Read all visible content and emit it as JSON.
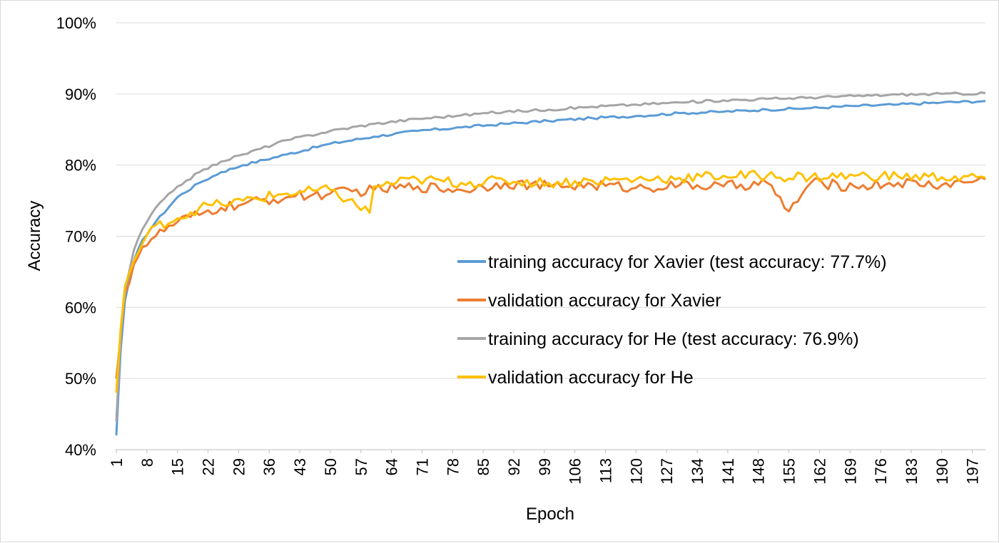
{
  "chart_data": {
    "type": "line",
    "title": "",
    "xlabel": "Epoch",
    "ylabel": "Accuracy",
    "ylim": [
      0.4,
      1.0
    ],
    "yticks": [
      "40%",
      "50%",
      "60%",
      "70%",
      "80%",
      "90%",
      "100%"
    ],
    "xlim": [
      1,
      200
    ],
    "xtick_labels": [
      "1",
      "8",
      "15",
      "22",
      "29",
      "36",
      "43",
      "50",
      "57",
      "64",
      "71",
      "78",
      "85",
      "92",
      "99",
      "106",
      "113",
      "120",
      "127",
      "134",
      "141",
      "148",
      "155",
      "162",
      "169",
      "176",
      "183",
      "190",
      "197"
    ],
    "grid": "horizontal",
    "legend_position": "center-right",
    "series": [
      {
        "name": "training accuracy for Xavier (test accuracy: 77.7%)",
        "color": "#5B9BD5",
        "x": [
          1,
          2,
          3,
          5,
          7,
          10,
          15,
          20,
          25,
          30,
          40,
          50,
          60,
          70,
          80,
          90,
          100,
          110,
          120,
          130,
          140,
          150,
          160,
          170,
          180,
          190,
          200
        ],
        "values": [
          0.42,
          0.54,
          0.61,
          0.665,
          0.695,
          0.72,
          0.755,
          0.775,
          0.79,
          0.8,
          0.815,
          0.83,
          0.84,
          0.848,
          0.853,
          0.858,
          0.862,
          0.866,
          0.869,
          0.873,
          0.875,
          0.878,
          0.88,
          0.883,
          0.885,
          0.888,
          0.89
        ]
      },
      {
        "name": "validation accuracy for Xavier",
        "color": "#ED7D31",
        "x": [
          1,
          2,
          3,
          5,
          7,
          10,
          15,
          20,
          25,
          30,
          40,
          50,
          60,
          70,
          80,
          90,
          100,
          110,
          120,
          130,
          140,
          150,
          155,
          160,
          170,
          180,
          190,
          200
        ],
        "values": [
          0.5,
          0.56,
          0.62,
          0.66,
          0.685,
          0.7,
          0.72,
          0.73,
          0.74,
          0.745,
          0.755,
          0.76,
          0.765,
          0.77,
          0.765,
          0.775,
          0.77,
          0.772,
          0.768,
          0.772,
          0.77,
          0.775,
          0.735,
          0.775,
          0.77,
          0.775,
          0.772,
          0.78
        ]
      },
      {
        "name": "training accuracy for He (test accuracy: 76.9%)",
        "color": "#A5A5A5",
        "x": [
          1,
          2,
          3,
          5,
          7,
          10,
          15,
          20,
          25,
          30,
          40,
          50,
          60,
          70,
          80,
          90,
          100,
          110,
          120,
          130,
          140,
          150,
          160,
          170,
          180,
          190,
          200
        ],
        "values": [
          0.44,
          0.56,
          0.625,
          0.68,
          0.71,
          0.74,
          0.77,
          0.79,
          0.805,
          0.815,
          0.835,
          0.848,
          0.858,
          0.865,
          0.87,
          0.875,
          0.878,
          0.882,
          0.885,
          0.888,
          0.891,
          0.893,
          0.895,
          0.897,
          0.899,
          0.9,
          0.901
        ]
      },
      {
        "name": "validation accuracy for He",
        "color": "#FFC000",
        "x": [
          1,
          2,
          3,
          5,
          7,
          10,
          15,
          20,
          25,
          30,
          40,
          50,
          59,
          60,
          70,
          80,
          90,
          100,
          110,
          120,
          130,
          140,
          150,
          160,
          170,
          180,
          190,
          200
        ],
        "values": [
          0.48,
          0.57,
          0.63,
          0.665,
          0.69,
          0.715,
          0.725,
          0.74,
          0.745,
          0.75,
          0.76,
          0.765,
          0.733,
          0.77,
          0.78,
          0.775,
          0.778,
          0.775,
          0.778,
          0.78,
          0.782,
          0.785,
          0.785,
          0.783,
          0.785,
          0.784,
          0.783,
          0.782
        ]
      }
    ]
  }
}
